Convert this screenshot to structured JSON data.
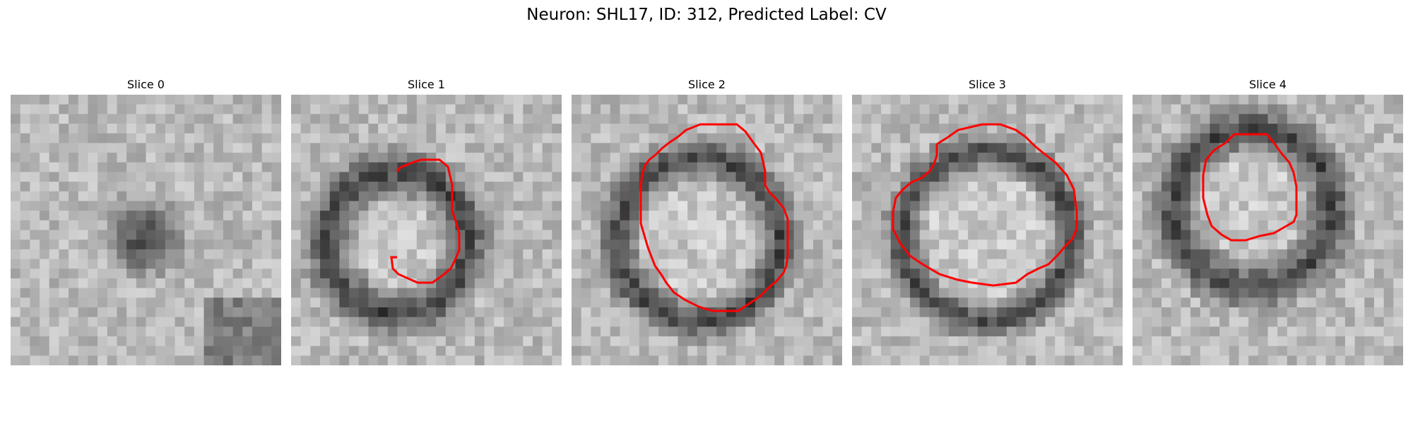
{
  "figure": {
    "title": "Neuron: SHL17, ID: 312, Predicted Label: CV"
  },
  "panels": [
    {
      "title": "Slice 0",
      "has_contour": false
    },
    {
      "title": "Slice 1",
      "has_contour": true
    },
    {
      "title": "Slice 2",
      "has_contour": true
    },
    {
      "title": "Slice 3",
      "has_contour": true
    },
    {
      "title": "Slice 4",
      "has_contour": true
    }
  ],
  "colors": {
    "contour": "#ff0000",
    "background": "#ffffff"
  }
}
